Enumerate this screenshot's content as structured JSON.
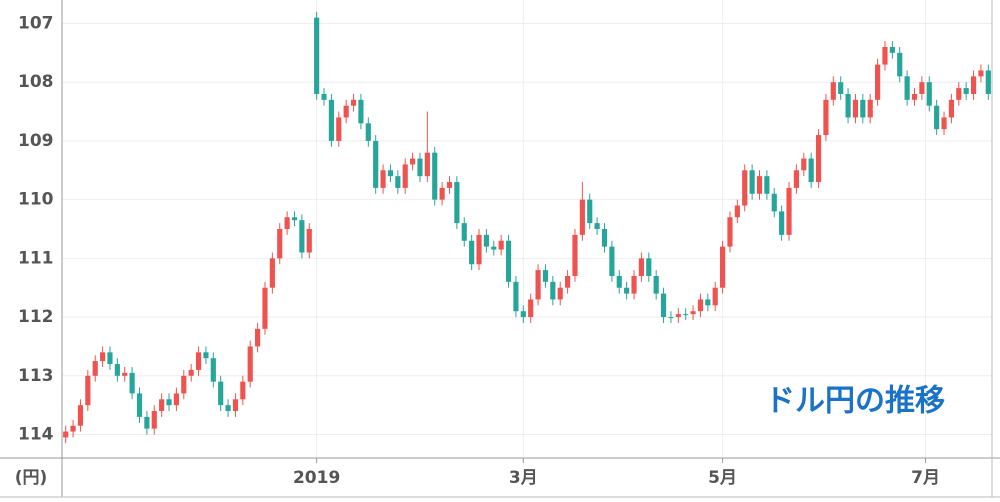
{
  "chart_data": {
    "type": "candlestick",
    "title": "ドル円の推移",
    "y_axis_label": "(円)",
    "y_inverted": true,
    "ylim": [
      106.6,
      114.4
    ],
    "yticks": [
      107,
      108,
      109,
      110,
      111,
      112,
      113,
      114
    ],
    "xlim": [
      -0.5,
      125.5
    ],
    "xticks": [
      {
        "value": 34,
        "label": "2019"
      },
      {
        "value": 62,
        "label": "3月"
      },
      {
        "value": 89,
        "label": "5月"
      },
      {
        "value": 116.5,
        "label": "7月"
      }
    ],
    "grid": true,
    "up_color": "#26a69a",
    "down_color": "#ef5350",
    "title_color": "#1a73c8",
    "open": [
      114.05,
      113.95,
      113.85,
      113.5,
      113.0,
      112.75,
      112.6,
      112.8,
      113.0,
      112.95,
      113.3,
      113.7,
      113.9,
      113.6,
      113.4,
      113.5,
      113.3,
      113.0,
      112.9,
      112.6,
      112.7,
      113.1,
      113.5,
      113.6,
      113.4,
      113.1,
      112.5,
      112.2,
      111.5,
      111.0,
      110.5,
      110.3,
      110.35,
      110.9,
      106.9,
      108.2,
      108.3,
      109.0,
      108.6,
      108.4,
      108.3,
      108.7,
      109.0,
      109.8,
      109.5,
      109.6,
      109.8,
      109.4,
      109.3,
      109.6,
      109.2,
      110.0,
      109.8,
      109.7,
      110.4,
      110.7,
      111.1,
      110.6,
      110.8,
      110.85,
      110.7,
      111.4,
      111.9,
      112.0,
      111.7,
      111.2,
      111.4,
      111.7,
      111.5,
      111.3,
      110.6,
      110.0,
      110.4,
      110.5,
      110.8,
      111.3,
      111.5,
      111.6,
      111.3,
      111.0,
      111.3,
      111.6,
      112.0,
      112.0,
      111.95,
      111.95,
      111.9,
      111.7,
      111.8,
      111.5,
      110.8,
      110.3,
      110.1,
      109.5,
      109.9,
      109.6,
      109.9,
      110.2,
      110.6,
      109.8,
      109.5,
      109.3,
      109.7,
      108.9,
      108.3,
      108.0,
      108.2,
      108.6,
      108.3,
      108.6,
      108.3,
      107.7,
      107.4,
      107.5,
      107.9,
      108.3,
      108.2,
      108.0,
      108.4,
      108.8,
      108.6,
      108.3,
      108.1,
      108.2,
      107.9,
      107.8
    ],
    "high": [
      114.15,
      114.05,
      113.95,
      113.6,
      113.1,
      112.85,
      112.9,
      113.1,
      113.1,
      113.4,
      113.8,
      114.0,
      114.0,
      113.7,
      113.6,
      113.6,
      113.4,
      113.1,
      113.0,
      112.8,
      113.2,
      113.6,
      113.7,
      113.7,
      113.5,
      113.2,
      112.6,
      112.3,
      111.6,
      111.1,
      110.6,
      110.45,
      111.0,
      111.0,
      108.3,
      108.4,
      109.1,
      109.1,
      108.7,
      108.5,
      108.8,
      109.1,
      109.9,
      109.9,
      109.7,
      109.9,
      109.9,
      109.5,
      109.7,
      109.7,
      110.1,
      110.1,
      109.9,
      110.5,
      110.8,
      111.2,
      111.2,
      110.9,
      110.95,
      110.95,
      111.5,
      112.0,
      112.1,
      112.1,
      111.8,
      111.5,
      111.8,
      111.8,
      111.6,
      111.4,
      110.7,
      110.5,
      110.6,
      110.9,
      111.4,
      111.6,
      111.7,
      111.7,
      111.4,
      111.4,
      111.7,
      112.1,
      112.1,
      112.1,
      112.05,
      112.05,
      112.0,
      111.9,
      111.9,
      111.6,
      110.9,
      110.4,
      110.2,
      110.0,
      110.0,
      110.0,
      110.3,
      110.7,
      110.7,
      109.9,
      109.6,
      109.8,
      109.8,
      109.0,
      108.4,
      108.3,
      108.7,
      108.7,
      108.7,
      108.7,
      108.4,
      107.8,
      107.6,
      108.0,
      108.4,
      108.4,
      108.3,
      108.5,
      108.9,
      108.9,
      108.7,
      108.4,
      108.3,
      108.3,
      108.0,
      108.3
    ],
    "low": [
      113.85,
      113.75,
      113.4,
      112.9,
      112.65,
      112.5,
      112.5,
      112.7,
      112.85,
      112.85,
      113.2,
      113.6,
      113.5,
      113.3,
      113.3,
      113.2,
      112.9,
      112.8,
      112.5,
      112.5,
      112.6,
      113.0,
      113.4,
      113.3,
      113.0,
      112.4,
      112.1,
      111.4,
      110.9,
      110.4,
      110.2,
      110.2,
      110.25,
      110.4,
      106.8,
      108.1,
      108.2,
      108.5,
      108.3,
      108.2,
      108.2,
      108.6,
      108.9,
      109.4,
      109.4,
      109.5,
      109.3,
      109.2,
      109.2,
      108.5,
      109.1,
      109.7,
      109.6,
      109.6,
      110.3,
      110.6,
      110.5,
      110.5,
      110.7,
      110.6,
      110.6,
      111.3,
      111.8,
      111.6,
      111.1,
      111.1,
      111.3,
      111.4,
      111.2,
      110.5,
      109.7,
      109.9,
      110.3,
      110.4,
      110.7,
      111.2,
      111.4,
      111.2,
      110.9,
      110.9,
      111.2,
      111.5,
      111.9,
      111.85,
      111.85,
      111.8,
      111.6,
      111.6,
      111.4,
      110.7,
      110.2,
      110.0,
      109.4,
      109.4,
      109.5,
      109.5,
      109.8,
      110.1,
      109.7,
      109.4,
      109.2,
      109.2,
      108.8,
      108.2,
      107.9,
      107.9,
      108.1,
      108.2,
      108.2,
      108.2,
      107.6,
      107.3,
      107.3,
      107.4,
      107.8,
      108.1,
      107.9,
      107.9,
      108.3,
      108.5,
      108.2,
      108.0,
      108.0,
      107.8,
      107.7,
      107.7
    ],
    "close": [
      113.95,
      113.85,
      113.5,
      113.0,
      112.75,
      112.6,
      112.8,
      113.0,
      112.95,
      113.3,
      113.7,
      113.9,
      113.6,
      113.4,
      113.5,
      113.3,
      113.0,
      112.9,
      112.6,
      112.7,
      113.1,
      113.5,
      113.6,
      113.4,
      113.1,
      112.5,
      112.2,
      111.5,
      111.0,
      110.5,
      110.3,
      110.35,
      110.9,
      110.5,
      108.2,
      108.3,
      109.0,
      108.6,
      108.4,
      108.3,
      108.7,
      109.0,
      109.8,
      109.5,
      109.6,
      109.8,
      109.4,
      109.3,
      109.6,
      109.2,
      110.0,
      109.8,
      109.7,
      110.4,
      110.7,
      111.1,
      110.6,
      110.8,
      110.85,
      110.7,
      111.4,
      111.9,
      112.0,
      111.7,
      111.2,
      111.4,
      111.7,
      111.5,
      111.3,
      110.6,
      110.0,
      110.4,
      110.5,
      110.8,
      111.3,
      111.5,
      111.6,
      111.3,
      111.0,
      111.3,
      111.6,
      112.0,
      112.0,
      111.95,
      111.95,
      111.9,
      111.7,
      111.8,
      111.5,
      110.8,
      110.3,
      110.1,
      109.5,
      109.9,
      109.6,
      109.9,
      110.2,
      110.6,
      109.8,
      109.5,
      109.3,
      109.7,
      108.9,
      108.3,
      108.0,
      108.2,
      108.6,
      108.3,
      108.6,
      108.3,
      107.7,
      107.4,
      107.5,
      107.9,
      108.3,
      108.2,
      108.0,
      108.4,
      108.8,
      108.6,
      108.3,
      108.1,
      108.2,
      107.9,
      107.8,
      108.2
    ]
  }
}
